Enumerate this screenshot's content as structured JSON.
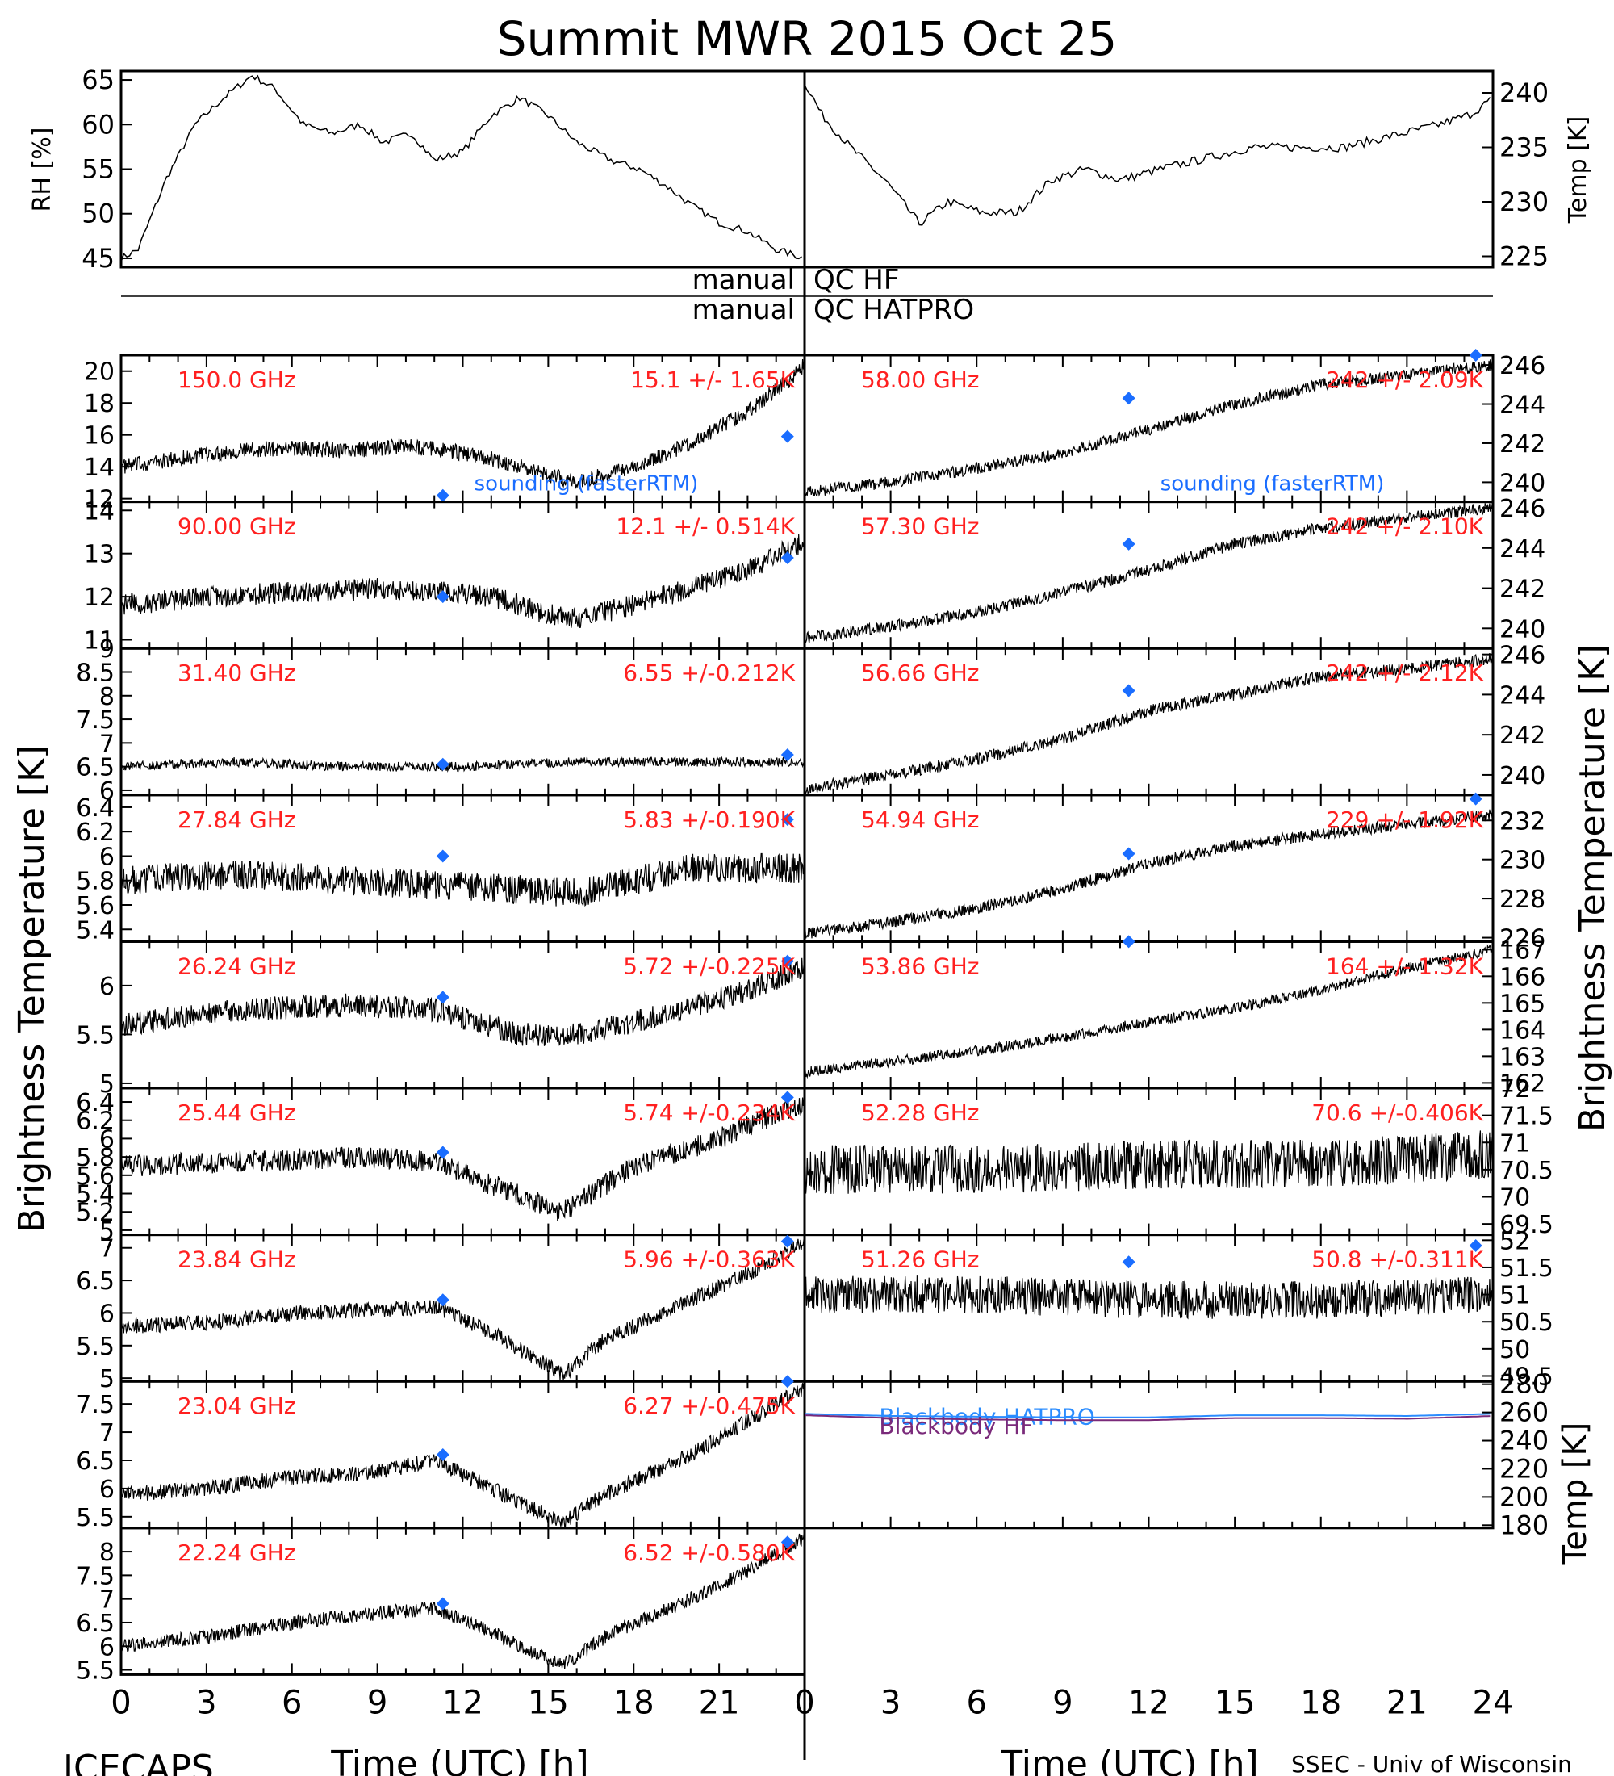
{
  "title": "Summit MWR 2015 Oct 25",
  "footer_left": "ICECAPS",
  "footer_right": "SSEC - Univ of Wisconsin",
  "qc_labels": {
    "left_hf": "manual",
    "left_hatpro": "manual",
    "right_hf": "QC HF",
    "right_hatpro": "QC HATPRO"
  },
  "colors": {
    "data": "#000000",
    "sounding": "#1a6dff",
    "channel_label": "#ff2020",
    "blackbody_hatpro": "#2a8cff",
    "blackbody_hf": "#7a2a7a"
  },
  "chart_data": [
    {
      "type": "line",
      "id": "rh",
      "ylabel": "RH [%]",
      "ylim": [
        44,
        66
      ],
      "yticks": [
        45,
        50,
        55,
        60,
        65
      ],
      "xlim": [
        0,
        12
      ],
      "series": [
        {
          "x": [
            0,
            0.3,
            0.8,
            1.3,
            1.8,
            2.3,
            2.7,
            3.2,
            3.7,
            4.2,
            4.6,
            5.1,
            5.5,
            6.0,
            6.5,
            7.0,
            7.5,
            8.0,
            8.6,
            9.1,
            9.6,
            10.0,
            10.5,
            11.0,
            11.5,
            12.0
          ],
          "values": [
            45,
            46,
            54,
            60,
            63,
            65.5,
            64,
            60,
            59,
            60,
            58,
            59,
            56,
            57,
            61,
            63,
            61,
            58,
            56,
            55,
            53,
            51,
            49,
            48,
            46,
            45
          ]
        }
      ]
    },
    {
      "type": "line",
      "id": "temp",
      "ylabel": "Temp [K]",
      "ylim": [
        224,
        242
      ],
      "yticks": [
        225,
        230,
        235,
        240
      ],
      "xlim": [
        12,
        24
      ],
      "series": [
        {
          "x": [
            12,
            12.3,
            12.8,
            13.4,
            14.0,
            14.5,
            15.1,
            15.7,
            16.3,
            16.9,
            17.5,
            18.2,
            19.0,
            19.8,
            20.6,
            21.4,
            22.2,
            23.0,
            23.6,
            24.0
          ],
          "values": [
            241,
            238,
            235,
            232,
            228,
            230,
            229,
            229,
            232,
            233,
            232,
            233,
            234,
            235,
            235,
            235,
            236,
            237,
            238,
            239.5
          ]
        }
      ]
    },
    {
      "type": "line",
      "panel": [
        0,
        0
      ],
      "channel": "150.0 GHz",
      "stat": "15.1 +/- 1.65K",
      "ylim": [
        11.8,
        21
      ],
      "yticks": [
        12,
        14,
        16,
        18,
        20
      ],
      "x": [
        0,
        2,
        4,
        6,
        8,
        10,
        11.5,
        13,
        15,
        16,
        18,
        20,
        22,
        23.5,
        24
      ],
      "values": [
        14,
        14.5,
        15,
        15.2,
        15,
        15.3,
        15,
        14.5,
        13.5,
        13,
        14,
        15.5,
        17.5,
        19.5,
        20.5
      ],
      "noise": 0.5,
      "sounding": [
        {
          "x": 11.3,
          "y": 12.2
        },
        {
          "x": 23.4,
          "y": 15.9
        }
      ],
      "annotation": "sounding (fasterRTM)"
    },
    {
      "type": "line",
      "panel": [
        0,
        1
      ],
      "channel": "90.00 GHz",
      "stat": "12.1 +/- 0.514K",
      "ylim": [
        10.8,
        14.2
      ],
      "yticks": [
        11,
        12,
        13,
        14
      ],
      "x": [
        0,
        3,
        6,
        9,
        11.5,
        13,
        15,
        16,
        18,
        20,
        22,
        24
      ],
      "values": [
        11.8,
        12,
        12.1,
        12.2,
        12.1,
        12,
        11.6,
        11.5,
        11.8,
        12.2,
        12.6,
        13.3
      ],
      "noise": 0.25,
      "sounding": [
        {
          "x": 11.3,
          "y": 12
        },
        {
          "x": 23.4,
          "y": 12.9
        }
      ]
    },
    {
      "type": "line",
      "panel": [
        0,
        2
      ],
      "channel": "31.40 GHz",
      "stat": "6.55 +/-0.212K",
      "ylim": [
        5.9,
        9
      ],
      "yticks": [
        6.0,
        6.5,
        7.0,
        7.5,
        8.0,
        8.5,
        9.0
      ],
      "x": [
        0,
        4,
        8,
        12,
        16,
        20,
        24
      ],
      "values": [
        6.5,
        6.6,
        6.5,
        6.5,
        6.6,
        6.6,
        6.6
      ],
      "noise": 0.1,
      "sounding": [
        {
          "x": 11.3,
          "y": 6.55
        },
        {
          "x": 23.4,
          "y": 6.75
        }
      ]
    },
    {
      "type": "line",
      "panel": [
        0,
        3
      ],
      "channel": "27.84 GHz",
      "stat": "5.83 +/-0.190K",
      "ylim": [
        5.3,
        6.5
      ],
      "yticks": [
        5.4,
        5.6,
        5.8,
        6.0,
        6.2,
        6.4
      ],
      "x": [
        0,
        4,
        8,
        12,
        16,
        20,
        24
      ],
      "values": [
        5.8,
        5.85,
        5.8,
        5.75,
        5.7,
        5.9,
        5.9
      ],
      "noise": 0.12,
      "sounding": [
        {
          "x": 11.3,
          "y": 6.0
        },
        {
          "x": 23.4,
          "y": 6.3
        }
      ]
    },
    {
      "type": "line",
      "panel": [
        0,
        4
      ],
      "channel": "26.24 GHz",
      "stat": "5.72 +/-0.225K",
      "ylim": [
        4.95,
        6.45
      ],
      "yticks": [
        5.0,
        5.5,
        6.0
      ],
      "x": [
        0,
        4,
        8,
        11,
        14,
        16,
        19,
        22,
        24
      ],
      "values": [
        5.6,
        5.75,
        5.8,
        5.75,
        5.5,
        5.5,
        5.7,
        5.95,
        6.2
      ],
      "noise": 0.12,
      "sounding": [
        {
          "x": 11.3,
          "y": 5.88
        },
        {
          "x": 23.4,
          "y": 6.25
        }
      ]
    },
    {
      "type": "line",
      "panel": [
        0,
        5
      ],
      "channel": "25.44 GHz",
      "stat": "5.74 +/-0.234K",
      "ylim": [
        4.95,
        6.55
      ],
      "yticks": [
        5.0,
        5.2,
        5.4,
        5.6,
        5.8,
        6.0,
        6.2,
        6.4
      ],
      "x": [
        0,
        4,
        8,
        11,
        13,
        15.5,
        18,
        21,
        24
      ],
      "values": [
        5.7,
        5.75,
        5.8,
        5.75,
        5.5,
        5.2,
        5.7,
        6.0,
        6.4
      ],
      "noise": 0.12,
      "sounding": [
        {
          "x": 11.3,
          "y": 5.85
        },
        {
          "x": 23.4,
          "y": 6.45
        }
      ]
    },
    {
      "type": "line",
      "panel": [
        0,
        6
      ],
      "channel": "23.84 GHz",
      "stat": "5.96 +/-0.363K",
      "ylim": [
        4.95,
        7.2
      ],
      "yticks": [
        5.0,
        5.5,
        6.0,
        6.5,
        7.0
      ],
      "x": [
        0,
        3,
        6,
        9,
        11,
        13,
        15.5,
        17,
        20,
        22,
        24
      ],
      "values": [
        5.8,
        5.85,
        6.0,
        6.05,
        6.1,
        5.7,
        5.05,
        5.6,
        6.2,
        6.6,
        7.1
      ],
      "noise": 0.12,
      "sounding": [
        {
          "x": 11.3,
          "y": 6.2
        },
        {
          "x": 23.4,
          "y": 7.1
        }
      ]
    },
    {
      "type": "line",
      "panel": [
        0,
        7
      ],
      "channel": "23.04 GHz",
      "stat": "6.27 +/-0.475K",
      "ylim": [
        5.3,
        7.9
      ],
      "yticks": [
        5.5,
        6.0,
        6.5,
        7.0,
        7.5
      ],
      "x": [
        0,
        3,
        6,
        9,
        11,
        13,
        15.5,
        17,
        20,
        22,
        24
      ],
      "values": [
        5.9,
        6.0,
        6.2,
        6.3,
        6.5,
        6.0,
        5.4,
        5.9,
        6.6,
        7.2,
        7.8
      ],
      "noise": 0.14,
      "sounding": [
        {
          "x": 11.3,
          "y": 6.6
        },
        {
          "x": 23.4,
          "y": 7.9
        }
      ]
    },
    {
      "type": "line",
      "panel": [
        0,
        8
      ],
      "channel": "22.24 GHz",
      "stat": "6.52 +/-0.580K",
      "ylim": [
        5.4,
        8.5
      ],
      "yticks": [
        5.5,
        6.0,
        6.5,
        7.0,
        7.5,
        8.0
      ],
      "x": [
        0,
        3,
        6,
        9,
        11,
        13,
        15.5,
        17,
        20,
        22,
        24
      ],
      "values": [
        6.0,
        6.2,
        6.5,
        6.7,
        6.8,
        6.3,
        5.6,
        6.2,
        7.0,
        7.6,
        8.3
      ],
      "noise": 0.15,
      "sounding": [
        {
          "x": 11.3,
          "y": 6.9
        },
        {
          "x": 23.4,
          "y": 8.2
        }
      ]
    },
    {
      "type": "line",
      "panel": [
        1,
        0
      ],
      "channel": "58.00 GHz",
      "stat": "242 +/- 2.09K",
      "ylim": [
        239,
        246.5
      ],
      "yticks": [
        240,
        242,
        244,
        246
      ],
      "x": [
        0,
        3,
        6,
        9,
        12,
        15,
        18,
        21,
        24
      ],
      "values": [
        239.5,
        240,
        240.7,
        241.5,
        242.7,
        244,
        245,
        245.5,
        246
      ],
      "noise": 0.3,
      "sounding": [
        {
          "x": 11.3,
          "y": 244.3
        },
        {
          "x": 23.4,
          "y": 246.6
        }
      ],
      "annotation": "sounding (fasterRTM)"
    },
    {
      "type": "line",
      "panel": [
        1,
        1
      ],
      "channel": "57.30 GHz",
      "stat": "242 +/- 2.10K",
      "ylim": [
        239,
        246.3
      ],
      "yticks": [
        240,
        242,
        244,
        246
      ],
      "x": [
        0,
        3,
        6,
        9,
        12,
        15,
        18,
        21,
        24
      ],
      "values": [
        239.5,
        240.1,
        240.8,
        241.8,
        242.9,
        244.2,
        245,
        245.5,
        246
      ],
      "noise": 0.3,
      "sounding": [
        {
          "x": 11.3,
          "y": 244.2
        }
      ]
    },
    {
      "type": "line",
      "panel": [
        1,
        2
      ],
      "channel": "56.66 GHz",
      "stat": "242 +/- 2.12K",
      "ylim": [
        239,
        246.3
      ],
      "yticks": [
        240,
        242,
        244,
        246
      ],
      "x": [
        0,
        3,
        6,
        9,
        12,
        15,
        18,
        21,
        24
      ],
      "values": [
        239.3,
        240,
        240.8,
        241.8,
        243.2,
        244,
        244.9,
        245.3,
        245.8
      ],
      "noise": 0.3,
      "sounding": [
        {
          "x": 11.3,
          "y": 244.2
        }
      ]
    },
    {
      "type": "line",
      "panel": [
        1,
        3
      ],
      "channel": "54.94 GHz",
      "stat": "229 +/- 1.92K",
      "ylim": [
        225.8,
        233.3
      ],
      "yticks": [
        226,
        228,
        230,
        232
      ],
      "x": [
        0,
        3,
        6,
        9,
        12,
        15,
        18,
        21,
        24
      ],
      "values": [
        226.2,
        226.8,
        227.5,
        228.5,
        229.8,
        230.7,
        231.3,
        231.8,
        232.3
      ],
      "noise": 0.3,
      "sounding": [
        {
          "x": 11.3,
          "y": 230.3
        },
        {
          "x": 23.4,
          "y": 233.1
        }
      ]
    },
    {
      "type": "line",
      "panel": [
        1,
        4
      ],
      "channel": "53.86 GHz",
      "stat": "164 +/- 1.32K",
      "ylim": [
        161.8,
        167.3
      ],
      "yticks": [
        162,
        163,
        164,
        165,
        166,
        167
      ],
      "x": [
        0,
        3,
        6,
        9,
        12,
        15,
        18,
        21,
        24
      ],
      "values": [
        162.4,
        162.8,
        163.2,
        163.7,
        164.3,
        164.8,
        165.5,
        166.3,
        167.0
      ],
      "noise": 0.2,
      "sounding": [
        {
          "x": 11.3,
          "y": 167.4
        }
      ]
    },
    {
      "type": "line",
      "panel": [
        1,
        5
      ],
      "channel": "52.28 GHz",
      "stat": "70.6 +/-0.406K",
      "ylim": [
        69.3,
        72
      ],
      "yticks": [
        69.5,
        70.0,
        70.5,
        71.0,
        71.5,
        72.0
      ],
      "x": [
        0,
        6,
        12,
        18,
        24
      ],
      "values": [
        70.5,
        70.5,
        70.6,
        70.6,
        70.8
      ],
      "noise": 0.45,
      "sounding": []
    },
    {
      "type": "line",
      "panel": [
        1,
        6
      ],
      "channel": "51.26 GHz",
      "stat": "50.8 +/-0.311K",
      "ylim": [
        49.4,
        52.1
      ],
      "yticks": [
        49.5,
        50.0,
        50.5,
        51.0,
        51.5,
        52.0
      ],
      "x": [
        0,
        6,
        12,
        18,
        24
      ],
      "values": [
        51.0,
        51.0,
        50.9,
        50.9,
        51.0
      ],
      "noise": 0.35,
      "sounding": [
        {
          "x": 11.3,
          "y": 51.6
        },
        {
          "x": 23.4,
          "y": 51.9
        }
      ]
    },
    {
      "type": "line",
      "panel": [
        1,
        7
      ],
      "id": "blackbody",
      "ylabel": "Temp [K]",
      "ylim": [
        178,
        282
      ],
      "yticks": [
        180,
        200,
        220,
        240,
        260,
        280
      ],
      "series": [
        {
          "name": "Blackbody HATPRO",
          "x": [
            0,
            3,
            6,
            9,
            12,
            15,
            18,
            21,
            24
          ],
          "values": [
            259,
            257.5,
            257,
            256.5,
            256.5,
            258,
            258,
            257.5,
            259
          ]
        },
        {
          "name": "Blackbody HF",
          "x": [
            0,
            3,
            6,
            9,
            12,
            15,
            18,
            21,
            24
          ],
          "values": [
            258,
            256,
            255,
            254.5,
            254.5,
            256,
            256,
            255.5,
            257.5
          ]
        }
      ]
    }
  ],
  "axes": {
    "left_xlabel": "Time (UTC) [h]",
    "right_xlabel": "Time (UTC) [h]",
    "left_ylabel": "Brightness Temperature [K]",
    "right_ylabel": "Brightness Temperature [K]",
    "xticks_left": [
      "0",
      "3",
      "6",
      "9",
      "12",
      "15",
      "18",
      "21"
    ],
    "xticks_right": [
      "0",
      "3",
      "6",
      "9",
      "12",
      "15",
      "18",
      "21",
      "24"
    ]
  }
}
